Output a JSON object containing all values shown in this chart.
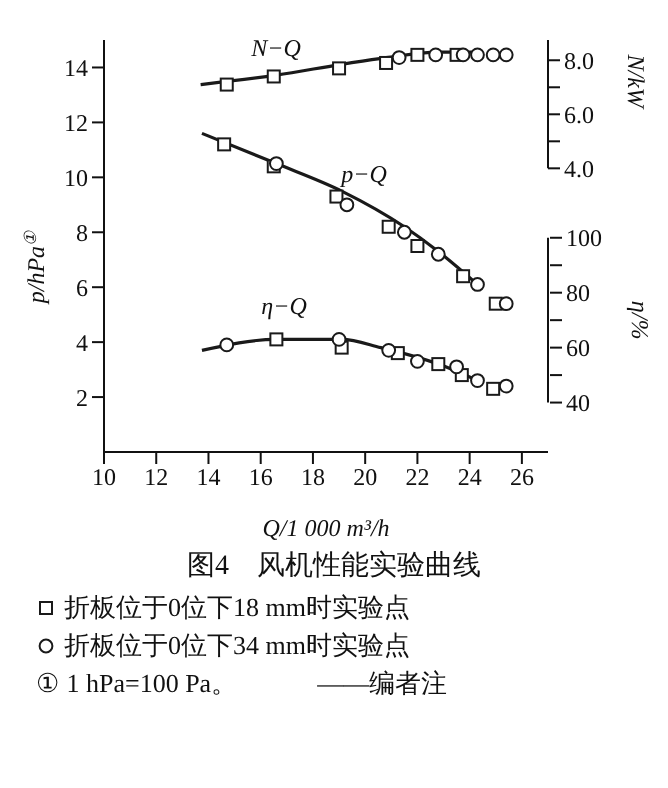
{
  "chart_data": {
    "type": "line",
    "title": "图4　风机性能实验曲线",
    "xlabel": "Q/1 000 m³/h",
    "ylabel": "p/hPa$^{①}$",
    "y2label": "N/kW",
    "y3label": "η/%",
    "xlim": [
      10,
      27
    ],
    "xticks": [
      10,
      12,
      14,
      16,
      18,
      20,
      22,
      24,
      26
    ],
    "ylim": [
      0,
      15
    ],
    "yticks": [
      2,
      4,
      6,
      8,
      10,
      12,
      14
    ],
    "y2lim": [
      -6.5,
      8.75
    ],
    "y2ticks": [
      {
        "value": 4,
        "label": "4.0"
      },
      {
        "value": 5,
        "label": null
      },
      {
        "value": 6,
        "label": "6.0"
      },
      {
        "value": 7,
        "label": null
      },
      {
        "value": 8,
        "label": "8.0"
      }
    ],
    "y3lim": [
      22,
      172
    ],
    "y3ticks": [
      40,
      {
        "value": 50,
        "label": null
      },
      60,
      {
        "value": 70,
        "label": null
      },
      80,
      {
        "value": 90,
        "label": null
      },
      100
    ],
    "grid": false,
    "legend": "bottom",
    "annotations": [
      "N−Q",
      "p−Q",
      "η−Q",
      "① 1 hPa=100 Pa。",
      "——编者注"
    ],
    "series": [
      {
        "axis": "y2",
        "marker": "none",
        "color": "#1a1a1a",
        "x": [
          13.7,
          16.6,
          19.1,
          20.8,
          22.8,
          24.3
        ],
        "values": [
          7.1,
          7.45,
          7.85,
          8.1,
          8.3,
          8.3
        ]
      },
      {
        "type": "scatter",
        "axis": "y2",
        "marker": "square",
        "color": "#1a1a1a",
        "x": [
          14.7,
          16.5,
          19.0,
          20.8,
          22.0,
          23.5
        ],
        "values": [
          7.1,
          7.4,
          7.7,
          7.9,
          8.2,
          8.2
        ]
      },
      {
        "type": "scatter",
        "axis": "y2",
        "marker": "circle",
        "color": "#1a1a1a",
        "x": [
          21.3,
          22.7,
          23.75,
          24.3,
          24.9,
          25.4
        ],
        "values": [
          8.1,
          8.2,
          8.2,
          8.2,
          8.2,
          8.2
        ]
      },
      {
        "axis": "y",
        "marker": "none",
        "color": "#1a1a1a",
        "x": [
          13.75,
          16.6,
          19.1,
          21.5,
          22.8,
          24.3
        ],
        "values": [
          11.6,
          10.5,
          9.5,
          8.2,
          7.3,
          6.1
        ]
      },
      {
        "type": "scatter",
        "axis": "y",
        "marker": "square",
        "color": "#1a1a1a",
        "name": "折板位于0位下18 mm时实验点",
        "x": [
          14.6,
          16.5,
          18.9,
          20.9,
          22.0,
          23.75,
          25.0
        ],
        "values": [
          11.2,
          10.4,
          9.3,
          8.2,
          7.5,
          6.4,
          5.4
        ]
      },
      {
        "type": "scatter",
        "axis": "y",
        "marker": "circle",
        "color": "#1a1a1a",
        "name": "折板位于0位下34 mm时实验点",
        "x": [
          16.6,
          19.3,
          21.5,
          22.8,
          24.3,
          25.4
        ],
        "values": [
          10.5,
          9.0,
          8.0,
          7.2,
          6.1,
          5.4
        ]
      },
      {
        "axis": "y3",
        "marker": "none",
        "color": "#1a1a1a",
        "x": [
          13.75,
          16.6,
          19.1,
          20.6,
          22.8,
          24.3
        ],
        "values": [
          59,
          63,
          63,
          60,
          54,
          48
        ]
      },
      {
        "type": "scatter",
        "axis": "y3",
        "marker": "square",
        "color": "#1a1a1a",
        "x": [
          16.6,
          19.1,
          21.25,
          22.8,
          23.7,
          24.9
        ],
        "values": [
          63,
          60,
          58,
          54,
          50,
          45
        ]
      },
      {
        "type": "scatter",
        "axis": "y3",
        "marker": "circle",
        "color": "#1a1a1a",
        "x": [
          14.7,
          19.0,
          20.9,
          22.0,
          23.5,
          24.3,
          25.4
        ],
        "values": [
          61,
          63,
          59,
          55,
          53,
          48,
          46
        ]
      }
    ]
  }
}
